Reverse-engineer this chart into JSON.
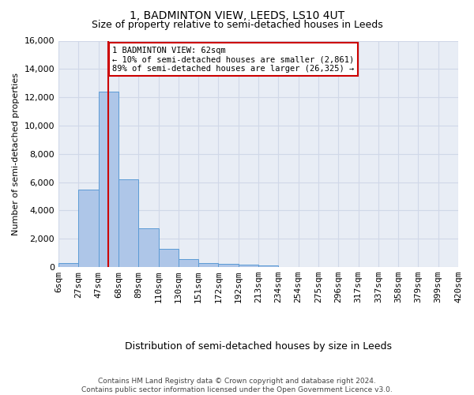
{
  "title": "1, BADMINTON VIEW, LEEDS, LS10 4UT",
  "subtitle": "Size of property relative to semi-detached houses in Leeds",
  "xlabel": "Distribution of semi-detached houses by size in Leeds",
  "ylabel": "Number of semi-detached properties",
  "bar_values": [
    300,
    5500,
    12400,
    6200,
    2750,
    1300,
    550,
    300,
    220,
    150,
    100,
    0,
    0,
    0,
    0,
    0,
    0,
    0,
    0,
    0
  ],
  "bin_labels": [
    "6sqm",
    "27sqm",
    "47sqm",
    "68sqm",
    "89sqm",
    "110sqm",
    "130sqm",
    "151sqm",
    "172sqm",
    "192sqm",
    "213sqm",
    "234sqm",
    "254sqm",
    "275sqm",
    "296sqm",
    "317sqm",
    "337sqm",
    "358sqm",
    "379sqm",
    "399sqm",
    "420sqm"
  ],
  "bar_color": "#aec6e8",
  "bar_edge_color": "#5b9bd5",
  "vline_color": "#cc0000",
  "annotation_text": "1 BADMINTON VIEW: 62sqm\n← 10% of semi-detached houses are smaller (2,861)\n89% of semi-detached houses are larger (26,325) →",
  "annotation_box_color": "#ffffff",
  "annotation_box_edge": "#cc0000",
  "ylim": [
    0,
    16000
  ],
  "yticks": [
    0,
    2000,
    4000,
    6000,
    8000,
    10000,
    12000,
    14000,
    16000
  ],
  "grid_color": "#d0d8e8",
  "background_color": "#e8edf5",
  "footer_text": "Contains HM Land Registry data © Crown copyright and database right 2024.\nContains public sector information licensed under the Open Government Licence v3.0.",
  "title_fontsize": 10,
  "subtitle_fontsize": 9,
  "xlabel_fontsize": 9,
  "ylabel_fontsize": 8,
  "tick_fontsize": 8,
  "footer_fontsize": 6.5,
  "annotation_fontsize": 7.5
}
